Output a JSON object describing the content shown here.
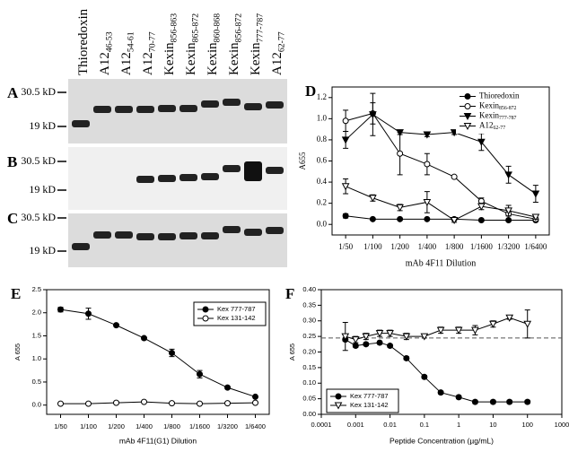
{
  "gel": {
    "lanes": [
      {
        "name": "Thioredoxin"
      },
      {
        "name": "A12",
        "sub": "46-53"
      },
      {
        "name": "A12",
        "sub": "54-61"
      },
      {
        "name": "A12",
        "sub": "70-77"
      },
      {
        "name": "Kexin",
        "sub": "856-863"
      },
      {
        "name": "Kexin",
        "sub": "865-872"
      },
      {
        "name": "Kexin",
        "sub": "860-868"
      },
      {
        "name": "Kexin",
        "sub": "856-872"
      },
      {
        "name": "Kexin",
        "sub": "777-787"
      },
      {
        "name": "A12",
        "sub": "62-77"
      }
    ],
    "panels": [
      {
        "label": "A",
        "markers": [
          "30.5 kD",
          "19 kD"
        ]
      },
      {
        "label": "B",
        "markers": [
          "30.5 kD",
          "19 kD"
        ]
      },
      {
        "label": "C",
        "markers": [
          "30.5 kD",
          "19 kD"
        ]
      }
    ]
  },
  "chart_data": [
    {
      "type": "line",
      "panel": "D",
      "y_label": "A655",
      "x_label": "mAb 4F11 Dilution",
      "categories": [
        "1/50",
        "1/100",
        "1/200",
        "1/400",
        "1/800",
        "1/1600",
        "1/3200",
        "1/6400"
      ],
      "ylim": [
        -0.1,
        1.3
      ],
      "yticks": [
        {
          "value": 0,
          "label": "0.0"
        },
        0.2,
        0.4,
        0.6,
        0.8,
        {
          "value": 1,
          "label": "1.0"
        },
        1.2
      ],
      "legend": "upper right",
      "series": [
        {
          "name": "Thioredoxin",
          "color": "#000000",
          "marker": "circle",
          "filled": true,
          "values": [
            0.08,
            0.05,
            0.05,
            0.05,
            0.05,
            0.04,
            0.04,
            0.04
          ],
          "errors": [
            0.02,
            0.01,
            0.01,
            0.01,
            0.01,
            0.01,
            0.01,
            0.01
          ]
        },
        {
          "name": "Kexin",
          "sub": "856-872",
          "color": "#000000",
          "marker": "circle",
          "filled": false,
          "values": [
            0.98,
            1.05,
            0.67,
            0.57,
            0.45,
            0.22,
            0.1,
            0.05
          ],
          "errors": [
            0.1,
            0.1,
            0.2,
            0.1,
            0.01,
            0.03,
            0.02,
            0.01
          ]
        },
        {
          "name": "Kexin",
          "sub": "777-787",
          "color": "#000000",
          "marker": "triangle",
          "filled": true,
          "values": [
            0.8,
            1.04,
            0.87,
            0.85,
            0.87,
            0.78,
            0.47,
            0.29
          ],
          "errors": [
            0.08,
            0.2,
            0.02,
            0.02,
            0.02,
            0.08,
            0.08,
            0.08
          ]
        },
        {
          "name": "A12",
          "sub": "62-77",
          "color": "#000000",
          "marker": "triangle",
          "filled": false,
          "values": [
            0.36,
            0.25,
            0.16,
            0.21,
            0.04,
            0.17,
            0.13,
            0.07
          ],
          "errors": [
            0.07,
            0.03,
            0.03,
            0.1,
            0.02,
            0.03,
            0.05,
            0.02
          ]
        }
      ]
    },
    {
      "type": "line",
      "panel": "E",
      "y_label": "A 655",
      "x_label": "mAb 4F11(G1) Dilution",
      "categories": [
        "1/50",
        "1/100",
        "1/200",
        "1/400",
        "1/800",
        "1/1600",
        "1/3200",
        "1/6400"
      ],
      "ylim": [
        -0.2,
        2.5
      ],
      "yticks": [
        {
          "value": 0,
          "label": "0.0"
        },
        0.5,
        {
          "value": 1,
          "label": "1.0"
        },
        1.5,
        {
          "value": 2,
          "label": "2.0"
        },
        2.5
      ],
      "legend": "upper right",
      "series": [
        {
          "name": "Kex 777-787",
          "color": "#000000",
          "marker": "circle",
          "filled": true,
          "values": [
            2.07,
            1.98,
            1.73,
            1.45,
            1.13,
            0.67,
            0.38,
            0.18
          ],
          "errors": [
            0.05,
            0.12,
            0.02,
            0.03,
            0.08,
            0.08,
            0.03,
            0.02
          ]
        },
        {
          "name": "Kex 131-142",
          "color": "#000000",
          "marker": "circle",
          "filled": false,
          "values": [
            0.03,
            0.03,
            0.05,
            0.07,
            0.04,
            0.03,
            0.04,
            0.05
          ],
          "errors": [
            0.01,
            0.01,
            0.03,
            0.01,
            0.01,
            0.01,
            0.01,
            0.01
          ]
        }
      ]
    },
    {
      "type": "line",
      "panel": "F",
      "y_label": "A 655",
      "x_label": "Peptide Concentration (µg/mL)",
      "log_x": true,
      "xlim": [
        0.0001,
        1000
      ],
      "xticks": [
        0.0001,
        0.001,
        0.01,
        0.1,
        1,
        10,
        100,
        1000
      ],
      "ylim": [
        0,
        0.4
      ],
      "yticks": [
        {
          "value": 0,
          "label": "0.00"
        },
        {
          "value": 0.05,
          "label": "0.05"
        },
        {
          "value": 0.1,
          "label": "0.10"
        },
        {
          "value": 0.15,
          "label": "0.15"
        },
        {
          "value": 0.2,
          "label": "0.20"
        },
        {
          "value": 0.25,
          "label": "0.25"
        },
        {
          "value": 0.3,
          "label": "0.30"
        },
        {
          "value": 0.35,
          "label": "0.35"
        },
        {
          "value": 0.4,
          "label": "0.40"
        }
      ],
      "reference_line": 0.245,
      "legend": "lower left",
      "x": [
        0.0005,
        0.001,
        0.002,
        0.005,
        0.01,
        0.03,
        0.1,
        0.3,
        1,
        3,
        10,
        30,
        100
      ],
      "series": [
        {
          "name": "Kex 777-787",
          "color": "#000000",
          "marker": "circle",
          "filled": true,
          "values": [
            0.24,
            0.22,
            0.225,
            0.23,
            0.22,
            0.18,
            0.12,
            0.07,
            0.055,
            0.04,
            0.04,
            0.04,
            0.04
          ],
          "errors": [
            0.005,
            0.005,
            0.005,
            0.005,
            0.005,
            0.005,
            0.005,
            0.005,
            0.005,
            0.005,
            0.005,
            0.005,
            0.005
          ]
        },
        {
          "name": "Kex 131-142",
          "color": "#000000",
          "marker": "triangle",
          "filled": false,
          "values": [
            0.25,
            0.24,
            0.25,
            0.26,
            0.26,
            0.25,
            0.25,
            0.27,
            0.27,
            0.27,
            0.29,
            0.31,
            0.29
          ],
          "errors": [
            0.045,
            0.01,
            0.01,
            0.01,
            0.01,
            0.01,
            0.005,
            0.01,
            0.01,
            0.015,
            0.01,
            0.005,
            0.045
          ]
        }
      ]
    }
  ]
}
